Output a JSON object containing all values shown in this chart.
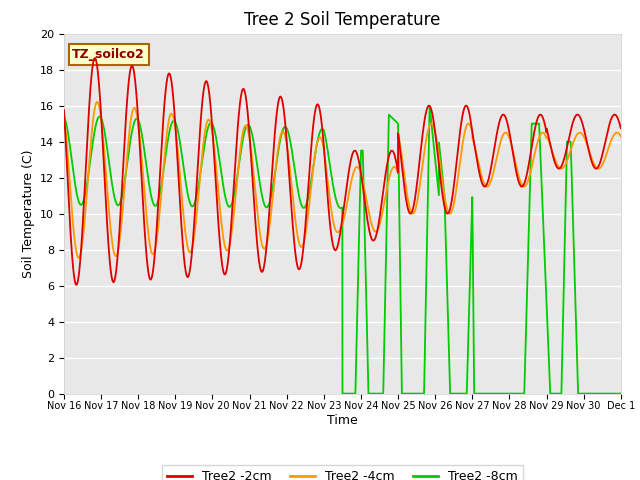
{
  "title": "Tree 2 Soil Temperature",
  "ylabel": "Soil Temperature (C)",
  "xlabel": "Time",
  "ylim": [
    0,
    20
  ],
  "bg_color": "#e8e8e8",
  "label_box_text": "TZ_soilco2",
  "label_box_color": "#ffffcc",
  "label_box_border": "#aa6600",
  "line_colors": {
    "red": "#dd0000",
    "orange": "#ff9900",
    "green": "#00cc00"
  },
  "legend_labels": [
    "Tree2 -2cm",
    "Tree2 -4cm",
    "Tree2 -8cm"
  ],
  "tick_labels": [
    "Nov 16",
    "Nov 17",
    "Nov 18",
    "Nov 19",
    "Nov 20",
    "Nov 21",
    "Nov 22",
    "Nov 23",
    "Nov 24",
    "Nov 25",
    "Nov 26",
    "Nov 27",
    "Nov 28",
    "Nov 29",
    "Nov 30",
    "Dec 1"
  ],
  "title_fontsize": 12,
  "axis_fontsize": 9,
  "tick_fontsize": 8,
  "figsize": [
    6.4,
    4.8
  ],
  "dpi": 100
}
